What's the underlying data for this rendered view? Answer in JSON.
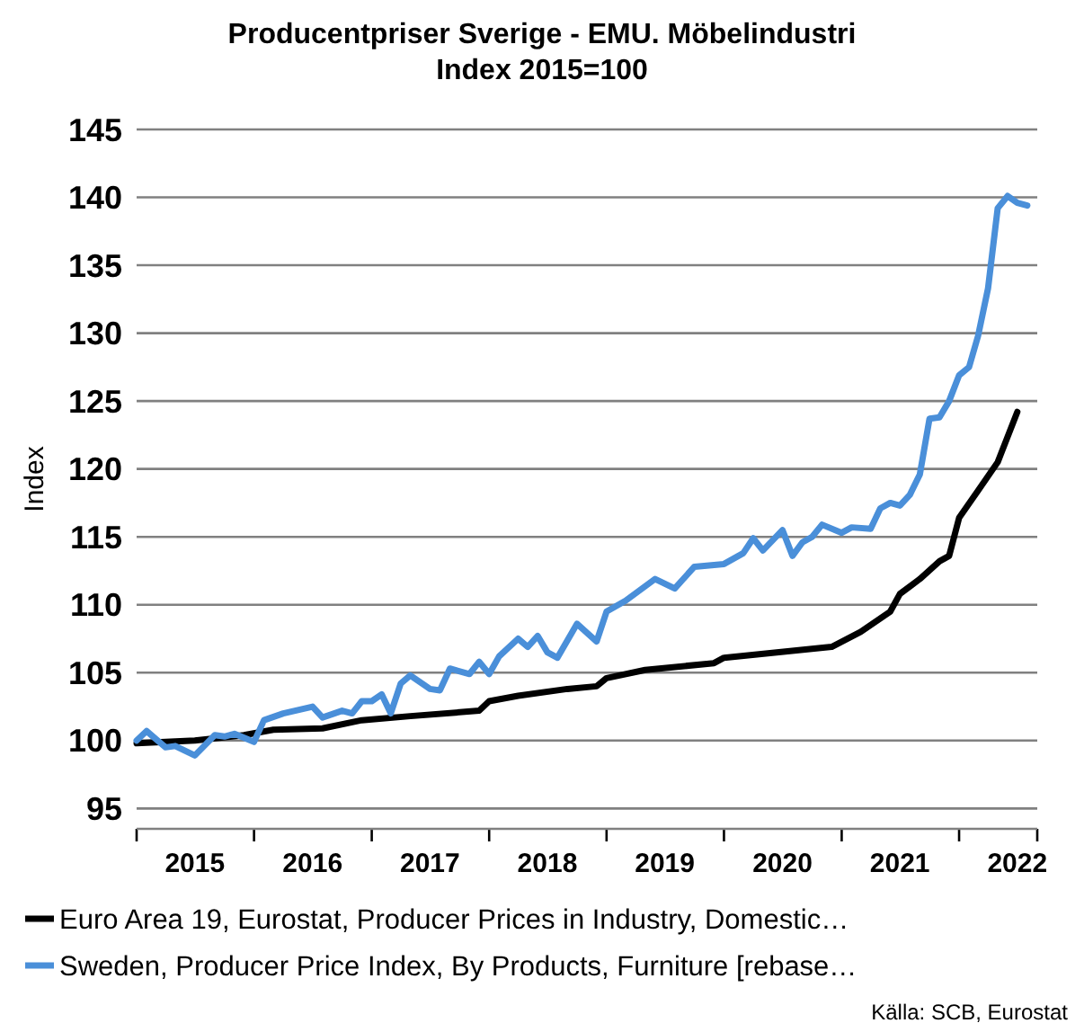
{
  "chart_data": {
    "type": "line",
    "title": "Producentpriser Sverige - EMU. Möbelindustri",
    "subtitle": "Index 2015=100",
    "ylabel": "Index",
    "annotations": [
      "Källa: SCB, Eurostat"
    ],
    "xlim": [
      "2015-01",
      "2022-09"
    ],
    "xticks": [
      {
        "value": "2015-01",
        "label": null
      },
      {
        "value": "2015-07",
        "label": "2015"
      },
      {
        "value": "2016-01",
        "label": null
      },
      {
        "value": "2016-07",
        "label": "2016"
      },
      {
        "value": "2017-01",
        "label": null
      },
      {
        "value": "2017-07",
        "label": "2017"
      },
      {
        "value": "2018-01",
        "label": null
      },
      {
        "value": "2018-07",
        "label": "2018"
      },
      {
        "value": "2019-01",
        "label": null
      },
      {
        "value": "2019-07",
        "label": "2019"
      },
      {
        "value": "2020-01",
        "label": null
      },
      {
        "value": "2020-07",
        "label": "2020"
      },
      {
        "value": "2021-01",
        "label": null
      },
      {
        "value": "2021-07",
        "label": "2021"
      },
      {
        "value": "2022-01",
        "label": null
      },
      {
        "value": "2022-07",
        "label": "2022"
      },
      {
        "value": "2022-09",
        "label": null
      }
    ],
    "ylim": [
      93.5,
      145
    ],
    "yticks": [
      95,
      100,
      105,
      110,
      115,
      120,
      125,
      130,
      135,
      140,
      145
    ],
    "grid": "y",
    "legend": "bottom",
    "marker": "none",
    "line_style": "solid",
    "series": [
      {
        "name": "Euro Area 19, Eurostat, Producer Prices in Industry, Domestic…",
        "color": "#000000",
        "x": [
          "2015-01",
          "2015-07",
          "2015-12",
          "2016-03",
          "2016-08",
          "2016-12",
          "2017-05",
          "2017-12",
          "2018-01",
          "2018-04",
          "2018-09",
          "2018-12",
          "2019-01",
          "2019-05",
          "2019-12",
          "2020-01",
          "2020-12",
          "2021-03",
          "2021-06",
          "2021-07",
          "2021-09",
          "2021-11",
          "2021-12",
          "2022-01",
          "2022-03",
          "2022-05",
          "2022-07"
        ],
        "values": [
          99.8,
          100.0,
          100.4,
          100.8,
          100.9,
          101.5,
          101.8,
          102.2,
          102.9,
          103.3,
          103.8,
          104.0,
          104.6,
          105.2,
          105.7,
          106.1,
          106.9,
          108.0,
          109.5,
          110.8,
          111.9,
          113.2,
          113.6,
          116.4,
          118.4,
          120.5,
          124.2
        ]
      },
      {
        "name": "Sweden, Producer Price Index, By Products, Furniture [rebase…",
        "color": "#4a8fd9",
        "x": [
          "2015-01",
          "2015-02",
          "2015-04",
          "2015-05",
          "2015-07",
          "2015-09",
          "2015-10",
          "2015-11",
          "2016-01",
          "2016-02",
          "2016-04",
          "2016-07",
          "2016-08",
          "2016-10",
          "2016-11",
          "2016-12",
          "2017-01",
          "2017-02",
          "2017-03",
          "2017-04",
          "2017-05",
          "2017-07",
          "2017-08",
          "2017-09",
          "2017-11",
          "2017-12",
          "2018-01",
          "2018-02",
          "2018-04",
          "2018-05",
          "2018-06",
          "2018-07",
          "2018-08",
          "2018-10",
          "2018-12",
          "2019-01",
          "2019-03",
          "2019-06",
          "2019-08",
          "2019-10",
          "2020-01",
          "2020-03",
          "2020-04",
          "2020-05",
          "2020-07",
          "2020-08",
          "2020-09",
          "2020-10",
          "2020-11",
          "2021-01",
          "2021-02",
          "2021-04",
          "2021-05",
          "2021-06",
          "2021-07",
          "2021-08",
          "2021-09",
          "2021-10",
          "2021-11",
          "2021-12",
          "2022-01",
          "2022-02",
          "2022-03",
          "2022-04",
          "2022-05",
          "2022-06",
          "2022-07",
          "2022-08"
        ],
        "values": [
          100.0,
          100.7,
          99.5,
          99.6,
          98.9,
          100.4,
          100.3,
          100.5,
          99.9,
          101.5,
          102.0,
          102.5,
          101.7,
          102.2,
          102.0,
          102.9,
          102.9,
          103.4,
          102.0,
          104.2,
          104.8,
          103.8,
          103.7,
          105.3,
          104.9,
          105.8,
          104.9,
          106.2,
          107.5,
          106.9,
          107.7,
          106.5,
          106.1,
          108.6,
          107.3,
          109.5,
          110.3,
          111.9,
          111.2,
          112.8,
          113.0,
          113.8,
          114.9,
          114.0,
          115.5,
          113.6,
          114.6,
          115.0,
          115.9,
          115.3,
          115.7,
          115.6,
          117.1,
          117.5,
          117.3,
          118.1,
          119.6,
          123.7,
          123.8,
          125.0,
          126.9,
          127.5,
          129.8,
          133.3,
          139.2,
          140.1,
          139.6,
          139.4
        ]
      }
    ]
  }
}
